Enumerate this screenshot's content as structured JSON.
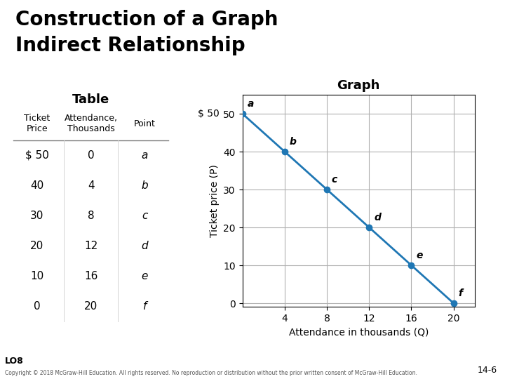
{
  "chart_data": {
    "type": "line",
    "title": "Construction of a Graph",
    "subtitle": "Indirect Relationship",
    "graph_label": "Graph",
    "x": [
      0,
      4,
      8,
      12,
      16,
      20
    ],
    "values": [
      50,
      40,
      30,
      20,
      10,
      0
    ],
    "point_labels": [
      "a",
      "b",
      "c",
      "d",
      "e",
      "f"
    ],
    "marker": "o",
    "xlabel": "Attendance in thousands (Q)",
    "ylabel": "Ticket price (P)",
    "xlim": [
      0,
      22
    ],
    "ylim": [
      -1,
      55
    ],
    "xticks": [
      4,
      8,
      12,
      16,
      20
    ],
    "yticks": [
      0,
      10,
      20,
      30,
      40,
      50
    ],
    "grid": true,
    "y_annotation": {
      "text": "$ 50",
      "y": 50
    },
    "table": {
      "label": "Table",
      "headers": [
        "Ticket\nPrice",
        "Attendance,\nThousands",
        "Point"
      ],
      "rows": [
        [
          "$ 50",
          "0",
          "a"
        ],
        [
          "40",
          "4",
          "b"
        ],
        [
          "30",
          "8",
          "c"
        ],
        [
          "20",
          "12",
          "d"
        ],
        [
          "10",
          "16",
          "e"
        ],
        [
          "0",
          "20",
          "f"
        ]
      ]
    },
    "footer": "LO8",
    "page_number": "14-6",
    "copyright": "Copyright © 2018 McGraw-Hill Education. All rights reserved. No reproduction or distribution without the prior written consent of McGraw-Hill Education."
  }
}
